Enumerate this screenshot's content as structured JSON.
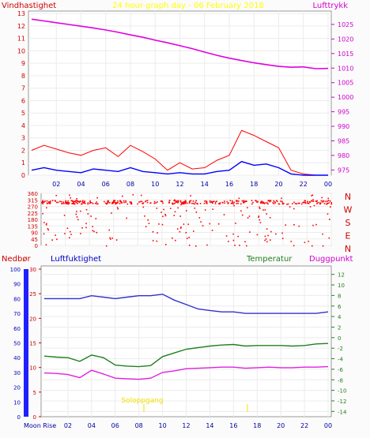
{
  "colors": {
    "wind": "#ff0000",
    "wind_avg": "#0000ff",
    "pressure": "#e000e0",
    "direction": "#ff0000",
    "rain": "#0000ff",
    "humidity": "#3030d0",
    "temperature": "#208020",
    "dewpoint": "#e020e0",
    "title": "#ffff00",
    "sun": "#f0e000"
  },
  "chart_data": [
    {
      "type": "line",
      "title": "24 hour graph day - 06 February 2018",
      "left_label": "Vindhastighet",
      "right_label": "Lufttrykk",
      "x_ticks": [
        "02",
        "04",
        "06",
        "08",
        "10",
        "12",
        "14",
        "16",
        "18",
        "20",
        "22",
        "00"
      ],
      "y_left_ticks": [
        "0",
        "1",
        "2",
        "3",
        "4",
        "5",
        "6",
        "7",
        "8",
        "9",
        "10",
        "11",
        "12",
        "13"
      ],
      "y_left_range": [
        0,
        13.2
      ],
      "y_right_ticks": [
        "975",
        "980",
        "985",
        "990",
        "995",
        "1000",
        "1005",
        "1010",
        "1015",
        "1020",
        "1025"
      ],
      "y_right_range": [
        973.2,
        1029.6
      ],
      "pressure": {
        "x": [
          0,
          1,
          2,
          3,
          4,
          5,
          6,
          7,
          8,
          9,
          10,
          11,
          12,
          13,
          14,
          15,
          16,
          17,
          18,
          19,
          20,
          21,
          22,
          23,
          24
        ],
        "y": [
          1026.8,
          1026.2,
          1025.6,
          1025,
          1024.4,
          1023.8,
          1023.1,
          1022.3,
          1021.4,
          1020.6,
          1019.6,
          1018.7,
          1017.7,
          1016.7,
          1015.5,
          1014.4,
          1013.4,
          1012.6,
          1011.8,
          1011.2,
          1010.6,
          1010.3,
          1010.4,
          1009.8,
          1009.9
        ]
      },
      "wind_gust": {
        "x": [
          0,
          1,
          2,
          3,
          4,
          5,
          6,
          7,
          8,
          9,
          10,
          11,
          12,
          13,
          14,
          15,
          16,
          17,
          18,
          19,
          20,
          21,
          22,
          23,
          24
        ],
        "y": [
          2.0,
          2.4,
          2.1,
          1.8,
          1.6,
          2.0,
          2.2,
          1.5,
          2.4,
          1.9,
          1.3,
          0.4,
          1.0,
          0.5,
          0.6,
          1.2,
          1.6,
          3.6,
          3.2,
          2.7,
          2.2,
          0.4,
          0.1,
          0.0,
          0.0
        ]
      },
      "wind_avg": {
        "x": [
          0,
          1,
          2,
          3,
          4,
          5,
          6,
          7,
          8,
          9,
          10,
          11,
          12,
          13,
          14,
          15,
          16,
          17,
          18,
          19,
          20,
          21,
          22,
          23,
          24
        ],
        "y": [
          0.4,
          0.6,
          0.4,
          0.3,
          0.2,
          0.5,
          0.4,
          0.3,
          0.6,
          0.3,
          0.2,
          0.1,
          0.2,
          0.1,
          0.1,
          0.3,
          0.4,
          1.1,
          0.8,
          0.9,
          0.6,
          0.1,
          0.0,
          0.0,
          0.0
        ]
      }
    },
    {
      "type": "scatter",
      "y_ticks": [
        "360",
        "315",
        "270",
        "225",
        "180",
        "135",
        "90",
        "45",
        "0"
      ],
      "y_range": [
        0,
        360
      ],
      "compass": [
        "N",
        "W",
        "S",
        "E",
        "N"
      ],
      "dense_band": [
        290,
        315
      ],
      "note": "wind direction scatter, dense near 300 deg all day, scattered elsewhere"
    },
    {
      "type": "line",
      "rain_label": "Nedbør",
      "humidity_label": "Luftfuktighet",
      "temp_label": "Temperatur",
      "dew_label": "Duggpunkt",
      "rain_ticks": [
        "0",
        "10",
        "20",
        "30",
        "40",
        "50",
        "60",
        "70",
        "80",
        "90",
        "100"
      ],
      "humidity_ticks": [
        "0",
        "5",
        "10",
        "15",
        "20",
        "25",
        "30"
      ],
      "humidity_range": [
        0,
        100
      ],
      "temp_ticks": [
        "-14",
        "-12",
        "-10",
        "-8",
        "-6",
        "-4",
        "-2",
        "0",
        "2",
        "4",
        "6",
        "8",
        "10",
        "12"
      ],
      "temp_range": [
        -15,
        13
      ],
      "x_ticks": [
        "Moon Rise",
        "02",
        "04",
        "06",
        "08",
        "10",
        "12",
        "14",
        "16",
        "18",
        "20",
        "22",
        "00"
      ],
      "sun_label": "Soloppgang",
      "humidity": {
        "x": [
          0,
          1,
          2,
          3,
          4,
          5,
          6,
          7,
          8,
          9,
          10,
          11,
          12,
          13,
          14,
          15,
          16,
          17,
          18,
          19,
          20,
          21,
          22,
          23,
          24
        ],
        "y": [
          80,
          80,
          80,
          80,
          82,
          81,
          80,
          81,
          82,
          82,
          83,
          79,
          76,
          73,
          72,
          71,
          71,
          70,
          70,
          70,
          70,
          70,
          70,
          70,
          71
        ]
      },
      "temperature": {
        "x": [
          0,
          1,
          2,
          3,
          4,
          5,
          6,
          7,
          8,
          9,
          10,
          11,
          12,
          13,
          14,
          15,
          16,
          17,
          18,
          19,
          20,
          21,
          22,
          23,
          24
        ],
        "y": [
          -3.5,
          -3.7,
          -3.8,
          -4.5,
          -3.3,
          -3.8,
          -5.2,
          -5.4,
          -5.5,
          -5.3,
          -3.6,
          -2.9,
          -2.2,
          -1.9,
          -1.6,
          -1.4,
          -1.3,
          -1.6,
          -1.5,
          -1.5,
          -1.5,
          -1.6,
          -1.5,
          -1.2,
          -1.1
        ]
      },
      "dewpoint": {
        "x": [
          0,
          1,
          2,
          3,
          4,
          5,
          6,
          7,
          8,
          9,
          10,
          11,
          12,
          13,
          14,
          15,
          16,
          17,
          18,
          19,
          20,
          21,
          22,
          23,
          24
        ],
        "y": [
          -6.7,
          -6.8,
          -7.0,
          -7.6,
          -6.2,
          -6.9,
          -7.7,
          -7.8,
          -7.9,
          -7.7,
          -6.6,
          -6.3,
          -5.9,
          -5.8,
          -5.7,
          -5.6,
          -5.6,
          -5.8,
          -5.7,
          -5.6,
          -5.7,
          -5.7,
          -5.6,
          -5.6,
          -5.5
        ]
      },
      "rain": {
        "x": [
          0,
          24
        ],
        "y": [
          0,
          0
        ]
      }
    }
  ]
}
